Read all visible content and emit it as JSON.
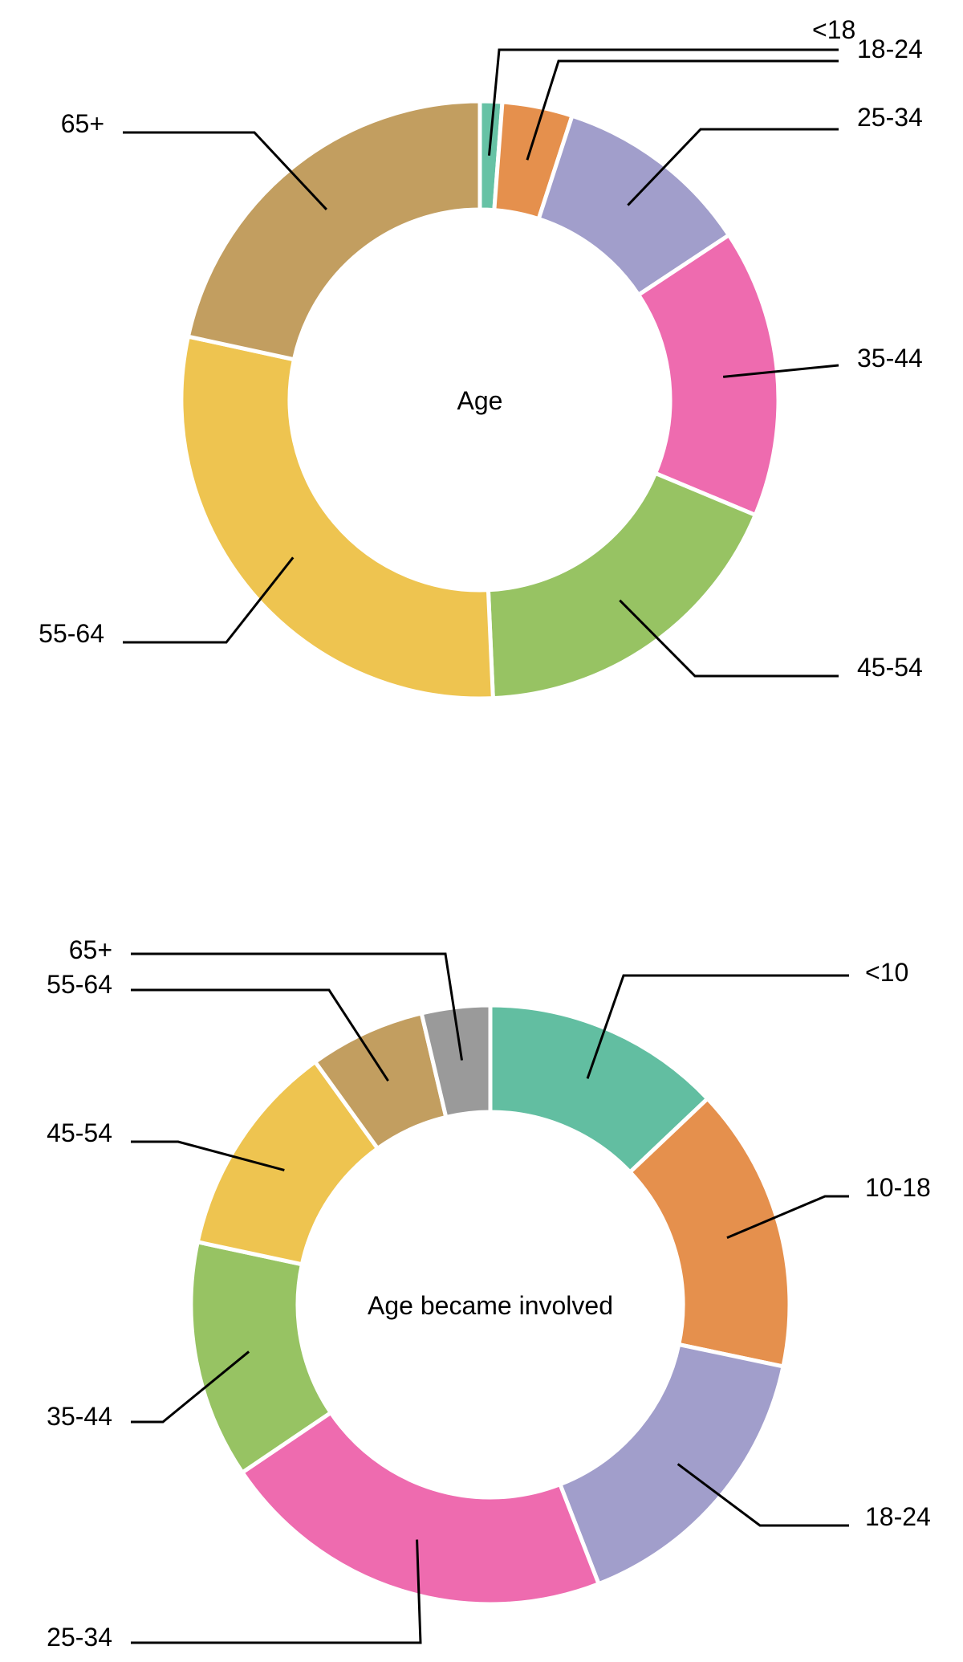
{
  "chart_data": [
    {
      "type": "pie",
      "variant": "donut",
      "center_label": "Age",
      "categories": [
        "<18",
        "18-24",
        "25-34",
        "35-44",
        "45-54",
        "55-64",
        "65+"
      ],
      "values": [
        1.2,
        3.8,
        10.7,
        15.6,
        18.0,
        29.1,
        21.6
      ],
      "colors": [
        "#66c2a5",
        "#e5904d",
        "#a19ecb",
        "#ee6baf",
        "#97c363",
        "#eec450",
        "#c29e60"
      ],
      "legend": "none"
    },
    {
      "type": "pie",
      "variant": "donut",
      "center_label": "Age became involved",
      "categories": [
        "<10",
        "10-18",
        "18-24",
        "25-34",
        "35-44",
        "45-54",
        "55-64",
        "65+"
      ],
      "values": [
        12.6,
        15.0,
        15.4,
        20.9,
        12.5,
        11.4,
        6.1,
        3.6
      ],
      "colors": [
        "#62bea1",
        "#e5904d",
        "#a19ecb",
        "#ee6baf",
        "#97c363",
        "#eec450",
        "#c29e60",
        "#9a9a9a"
      ],
      "legend": "none"
    }
  ]
}
